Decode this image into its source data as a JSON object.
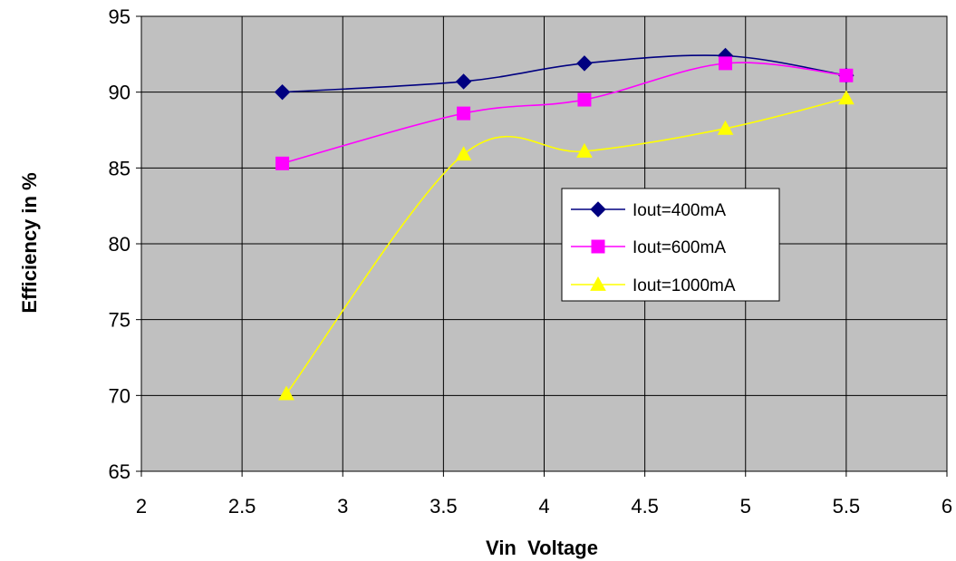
{
  "chart_data": {
    "type": "line",
    "title": "",
    "xlabel": "Vin  Voltage",
    "ylabel": "Efficiency in %",
    "xlim": [
      2,
      6
    ],
    "ylim": [
      65,
      95
    ],
    "x_ticks": [
      "2",
      "2.5",
      "3",
      "3.5",
      "4",
      "4.5",
      "5",
      "5.5",
      "6"
    ],
    "y_ticks": [
      "65",
      "70",
      "75",
      "80",
      "85",
      "90",
      "95"
    ],
    "grid": true,
    "legend_position": "right-center",
    "plot_background": "#c0c0c0",
    "series": [
      {
        "name": "Iout=400mA",
        "color": "#000080",
        "marker": "diamond",
        "x": [
          2.7,
          3.6,
          4.2,
          4.9,
          5.5
        ],
        "y": [
          90.0,
          90.7,
          91.9,
          92.4,
          91.1
        ]
      },
      {
        "name": "Iout=600mA",
        "color": "#ff00ff",
        "marker": "square",
        "x": [
          2.7,
          3.6,
          4.2,
          4.9,
          5.5
        ],
        "y": [
          85.3,
          88.6,
          89.5,
          91.9,
          91.1
        ]
      },
      {
        "name": "Iout=1000mA",
        "color": "#ffff00",
        "marker": "triangle",
        "x": [
          2.72,
          3.6,
          4.2,
          4.9,
          5.5
        ],
        "y": [
          70.1,
          85.9,
          86.1,
          87.6,
          89.6
        ]
      }
    ]
  }
}
